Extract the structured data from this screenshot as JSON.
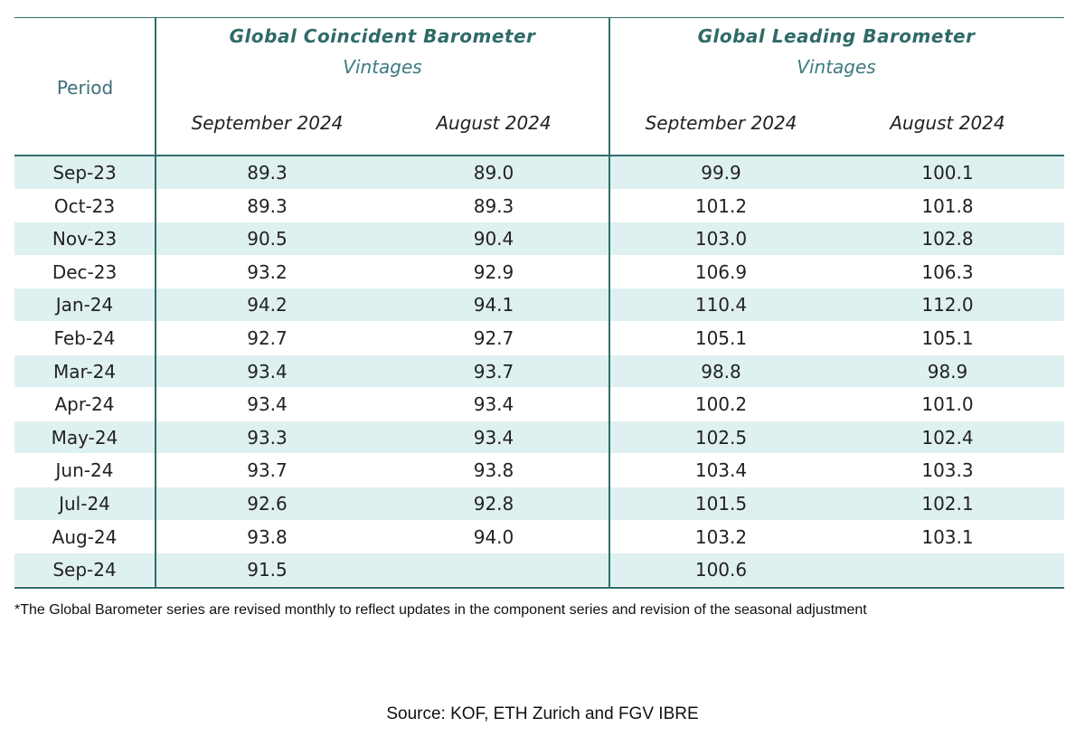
{
  "table": {
    "period_header": "Period",
    "groups": [
      {
        "title": "Global Coincident Barometer",
        "subtitle": "Vintages",
        "columns": [
          "September 2024",
          "August 2024"
        ]
      },
      {
        "title": "Global Leading Barometer",
        "subtitle": "Vintages",
        "columns": [
          "September 2024",
          "August 2024"
        ]
      }
    ],
    "rows": [
      {
        "period": "Sep-23",
        "values": [
          "89.3",
          "89.0",
          "99.9",
          "100.1"
        ]
      },
      {
        "period": "Oct-23",
        "values": [
          "89.3",
          "89.3",
          "101.2",
          "101.8"
        ]
      },
      {
        "period": "Nov-23",
        "values": [
          "90.5",
          "90.4",
          "103.0",
          "102.8"
        ]
      },
      {
        "period": "Dec-23",
        "values": [
          "93.2",
          "92.9",
          "106.9",
          "106.3"
        ]
      },
      {
        "period": "Jan-24",
        "values": [
          "94.2",
          "94.1",
          "110.4",
          "112.0"
        ]
      },
      {
        "period": "Feb-24",
        "values": [
          "92.7",
          "92.7",
          "105.1",
          "105.1"
        ]
      },
      {
        "period": "Mar-24",
        "values": [
          "93.4",
          "93.7",
          "98.8",
          "98.9"
        ]
      },
      {
        "period": "Apr-24",
        "values": [
          "93.4",
          "93.4",
          "100.2",
          "101.0"
        ]
      },
      {
        "period": "May-24",
        "values": [
          "93.3",
          "93.4",
          "102.5",
          "102.4"
        ]
      },
      {
        "period": "Jun-24",
        "values": [
          "93.7",
          "93.8",
          "103.4",
          "103.3"
        ]
      },
      {
        "period": "Jul-24",
        "values": [
          "92.6",
          "92.8",
          "101.5",
          "102.1"
        ]
      },
      {
        "period": "Aug-24",
        "values": [
          "93.8",
          "94.0",
          "103.2",
          "103.1"
        ]
      },
      {
        "period": "Sep-24",
        "values": [
          "91.5",
          "",
          "100.6",
          ""
        ]
      }
    ]
  },
  "footnote": "*The Global Barometer series are revised monthly to reflect updates in the component series and revision of the seasonal adjustment",
  "source": "Source: KOF, ETH Zurich and FGV IBRE",
  "colors": {
    "accent": "#2f6f6a",
    "row_shade": "#dff0f0"
  }
}
